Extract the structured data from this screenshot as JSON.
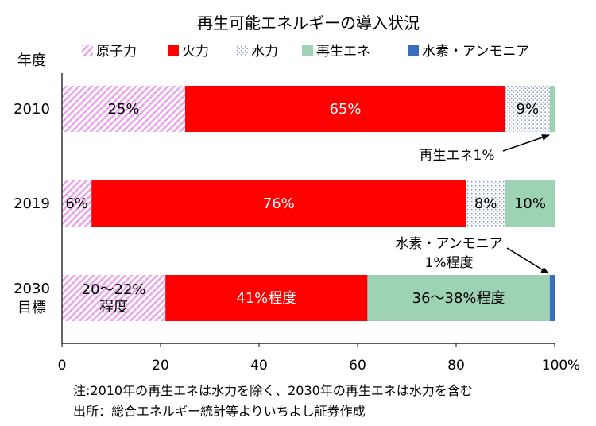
{
  "chart_data": {
    "type": "bar",
    "orientation": "horizontal",
    "stacked": true,
    "title": "再生可能エネルギーの導入状況",
    "y_axis_title": "年度",
    "categories": [
      "2010",
      "2019",
      "2030\n目標"
    ],
    "xlim": [
      0,
      100
    ],
    "x_ticks": [
      "0",
      "20",
      "40",
      "60",
      "80",
      "100"
    ],
    "x_unit": "%",
    "grid": false,
    "legend_position": "top",
    "series": [
      {
        "name": "原子力",
        "color": "#e9a7ea",
        "pattern": "hatch",
        "values": [
          25,
          6,
          21
        ]
      },
      {
        "name": "火力",
        "color": "#ff0000",
        "pattern": "solid",
        "values": [
          65,
          76,
          41
        ]
      },
      {
        "name": "水力",
        "color": "#b7c3d6",
        "pattern": "dots",
        "values": [
          9,
          8,
          0
        ]
      },
      {
        "name": "再生エネ",
        "color": "#9ed2b4",
        "pattern": "solid",
        "values": [
          1,
          10,
          37
        ]
      },
      {
        "name": "水素・アンモニア",
        "color": "#3a6cc0",
        "pattern": "solid",
        "values": [
          0,
          0,
          1
        ]
      }
    ],
    "bar_labels": [
      [
        "25%",
        "65%",
        "9%",
        "",
        ""
      ],
      [
        "6%",
        "76%",
        "8%",
        "10%",
        ""
      ],
      [
        "20～22%\n程度",
        "41%程度",
        "",
        "36～38%程度",
        ""
      ]
    ],
    "annotations": [
      {
        "text": "再生エネ1%"
      },
      {
        "text": "水素・アンモニア\n1%程度"
      }
    ]
  },
  "notes": [
    "注:2010年の再生エネは水力を除く、2030年の再生エネは水力を含む",
    "出所：総合エネルギー統計等よりいちよし証券作成"
  ]
}
